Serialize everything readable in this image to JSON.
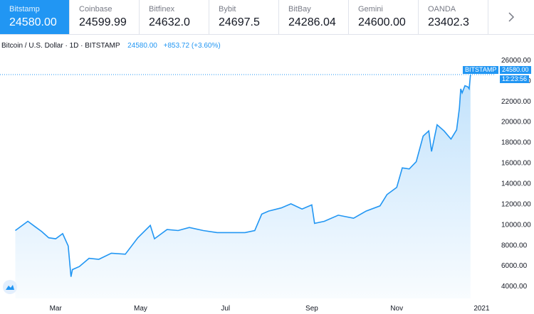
{
  "tabs": [
    {
      "name": "Bitstamp",
      "price": "24580.00",
      "active": true
    },
    {
      "name": "Coinbase",
      "price": "24599.99"
    },
    {
      "name": "Bitfinex",
      "price": "24632.0"
    },
    {
      "name": "Bybit",
      "price": "24697.5"
    },
    {
      "name": "BitBay",
      "price": "24286.04"
    },
    {
      "name": "Gemini",
      "price": "24600.00"
    },
    {
      "name": "OANDA",
      "price": "23402.3"
    }
  ],
  "next_icon": "chevron-right-icon",
  "legend": {
    "symbol": "Bitcoin / U.S. Dollar · 1D · BITSTAMP",
    "last": "24580.00",
    "change": "+853.72 (+3.60%)"
  },
  "price_badges": {
    "exchange": "BITSTAMP",
    "price": "24580.00",
    "countdown": "12:23:56"
  },
  "colors": {
    "accent": "#2196f3",
    "fill": "#d6e9fb"
  },
  "chart_data": {
    "type": "area",
    "title": "Bitcoin / U.S. Dollar · 1D · BITSTAMP",
    "x_ticks": [
      "Mar",
      "May",
      "Jul",
      "Sep",
      "Nov",
      "2021"
    ],
    "y_ticks": [
      "4000.00",
      "6000.00",
      "8000.00",
      "10000.00",
      "12000.00",
      "14000.00",
      "16000.00",
      "18000.00",
      "20000.00",
      "22000.00",
      "24000.00",
      "26000.00"
    ],
    "ylim": [
      2800,
      27000
    ],
    "x": [
      "2020-02-01",
      "2020-02-10",
      "2020-02-15",
      "2020-02-20",
      "2020-02-25",
      "2020-03-01",
      "2020-03-06",
      "2020-03-10",
      "2020-03-12",
      "2020-03-13",
      "2020-03-18",
      "2020-03-25",
      "2020-04-01",
      "2020-04-10",
      "2020-04-20",
      "2020-04-29",
      "2020-05-08",
      "2020-05-11",
      "2020-05-20",
      "2020-05-28",
      "2020-06-05",
      "2020-06-15",
      "2020-06-25",
      "2020-07-05",
      "2020-07-15",
      "2020-07-22",
      "2020-07-27",
      "2020-08-01",
      "2020-08-10",
      "2020-08-17",
      "2020-08-25",
      "2020-09-01",
      "2020-09-03",
      "2020-09-10",
      "2020-09-20",
      "2020-10-01",
      "2020-10-10",
      "2020-10-20",
      "2020-10-25",
      "2020-11-01",
      "2020-11-05",
      "2020-11-10",
      "2020-11-15",
      "2020-11-20",
      "2020-11-24",
      "2020-11-26",
      "2020-11-30",
      "2020-12-05",
      "2020-12-10",
      "2020-12-14",
      "2020-12-16",
      "2020-12-17",
      "2020-12-18",
      "2020-12-20",
      "2020-12-22",
      "2020-12-23",
      "2020-12-24"
    ],
    "series": [
      {
        "values": [
          9400,
          10300,
          9800,
          9300,
          8700,
          8600,
          9100,
          7900,
          4900,
          5600,
          5900,
          6700,
          6600,
          7200,
          7100,
          8700,
          9900,
          8600,
          9500,
          9400,
          9700,
          9400,
          9200,
          9200,
          9200,
          9400,
          11000,
          11300,
          11600,
          12000,
          11500,
          11900,
          10100,
          10300,
          10900,
          10600,
          11300,
          11800,
          12900,
          13600,
          15500,
          15400,
          16100,
          18600,
          19100,
          17100,
          19700,
          19100,
          18300,
          19200,
          21300,
          23200,
          22800,
          23500,
          23400,
          23200,
          24580
        ]
      }
    ]
  }
}
